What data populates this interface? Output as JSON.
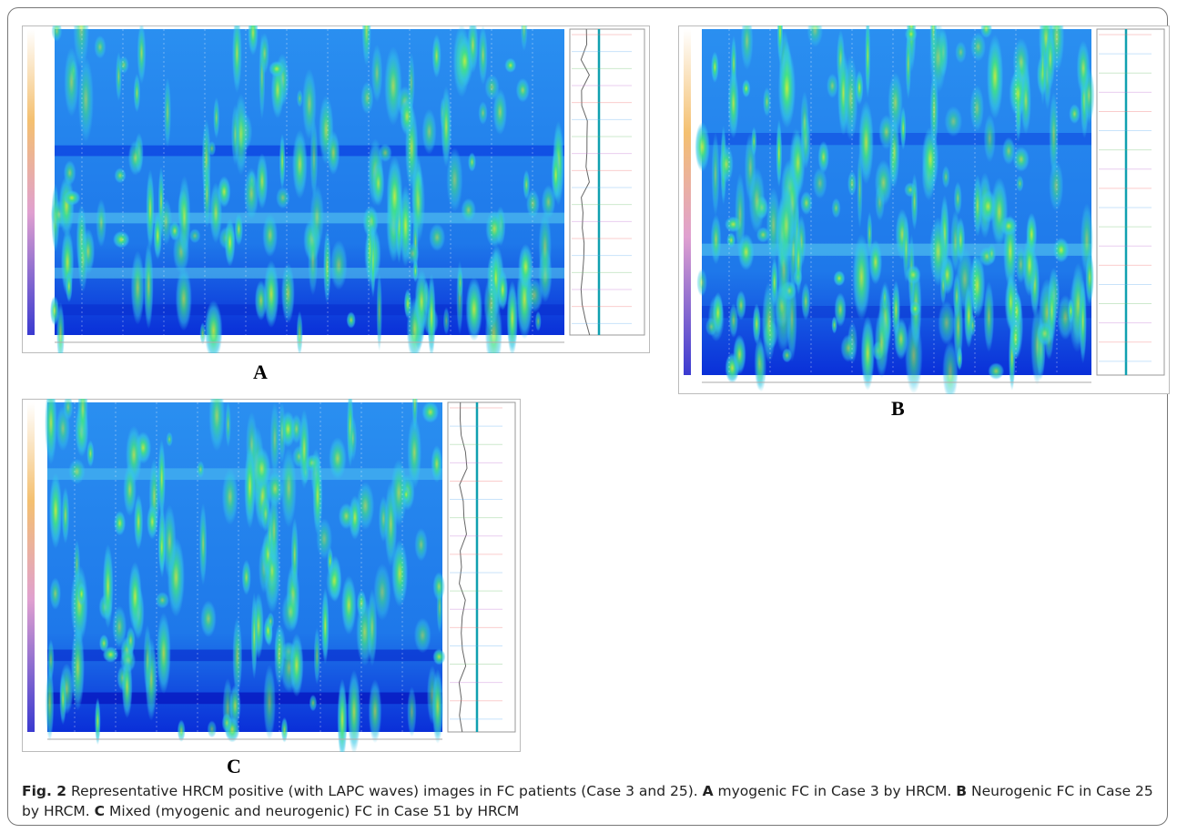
{
  "figure": {
    "panels": [
      {
        "label": "A"
      },
      {
        "label": "B"
      },
      {
        "label": "C"
      }
    ],
    "caption": {
      "number": "Fig. 2",
      "intro": " Representative HRCM positive (with LAPC waves) images in FC patients (Case 3 and 25). ",
      "parts": [
        {
          "label": "A",
          "text": " myogenic FC in Case 3 by HRCM. "
        },
        {
          "label": "B",
          "text": " Neurogenic FC in Case 25 by HRCM. "
        },
        {
          "label": "C",
          "text": " Mixed (myogenic and neurogenic) FC in Case 51 by HRCM"
        }
      ]
    }
  }
}
